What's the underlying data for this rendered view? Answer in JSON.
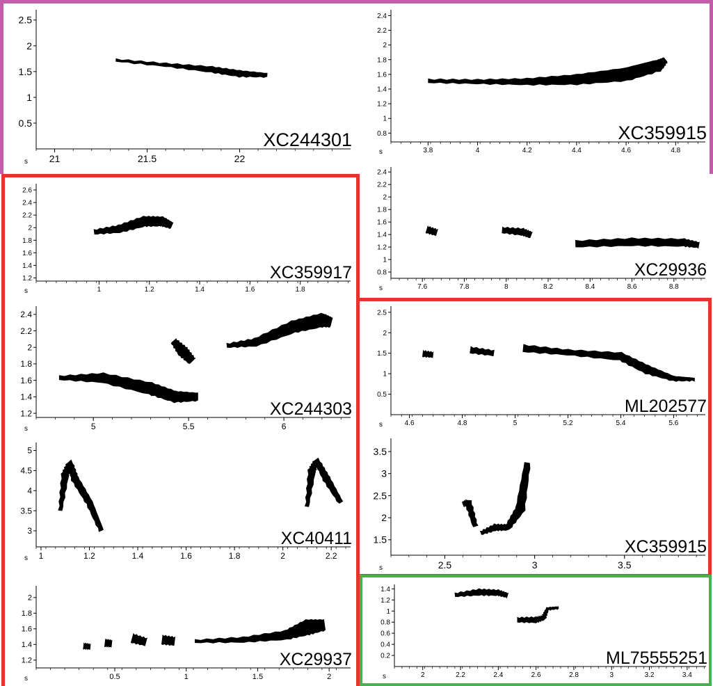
{
  "colors": {
    "purple_group": "#c25ea9",
    "red_group": "#e8352b",
    "green_group": "#4bae4f",
    "trace": "#000000"
  },
  "axis_unit": "s",
  "panels": [
    {
      "id": "XC244301",
      "label": "XC244301",
      "frame": "purple",
      "y_ticks": [
        "0.5",
        "1",
        "1.5",
        "2",
        "2.5"
      ],
      "x_ticks": [
        "21",
        "21.5",
        "22"
      ],
      "y_range": [
        0,
        2.7
      ],
      "x_range": [
        20.9,
        22.6
      ],
      "traces": [
        {
          "points": [
            [
              21.33,
              1.72
            ],
            [
              21.6,
              1.63
            ],
            [
              21.85,
              1.54
            ],
            [
              22.0,
              1.46
            ],
            [
              22.15,
              1.43
            ]
          ],
          "width": [
            0.02,
            0.04,
            0.09,
            0.1,
            0.05
          ]
        }
      ]
    },
    {
      "id": "XC359915-a",
      "label": "XC359915",
      "frame": "purple",
      "y_ticks": [
        "0.8",
        "1",
        "1.2",
        "1.4",
        "1.6",
        "1.8",
        "2",
        "2.2",
        "2.4"
      ],
      "x_ticks": [
        "3.8",
        "4",
        "4.2",
        "4.4",
        "4.6",
        "4.8"
      ],
      "y_range": [
        0.68,
        2.48
      ],
      "x_range": [
        3.65,
        4.92
      ],
      "traces": [
        {
          "points": [
            [
              3.8,
              1.51
            ],
            [
              4.0,
              1.5
            ],
            [
              4.2,
              1.5
            ],
            [
              4.4,
              1.53
            ],
            [
              4.6,
              1.6
            ],
            [
              4.73,
              1.72
            ],
            [
              4.76,
              1.8
            ]
          ],
          "width": [
            0.03,
            0.04,
            0.07,
            0.12,
            0.16,
            0.14,
            0.06
          ]
        }
      ]
    },
    {
      "id": "XC359917",
      "label": "XC359917",
      "frame": "red",
      "y_ticks": [
        "1.2",
        "1.4",
        "1.6",
        "1.8",
        "2",
        "2.2",
        "2.4",
        "2.6"
      ],
      "x_ticks": [
        "1",
        "1.2",
        "1.4",
        "1.6",
        "1.8"
      ],
      "y_range": [
        1.15,
        2.7
      ],
      "x_range": [
        0.75,
        2.0
      ],
      "traces": [
        {
          "points": [
            [
              0.98,
              1.93
            ],
            [
              1.08,
              1.98
            ],
            [
              1.18,
              2.1
            ],
            [
              1.25,
              2.1
            ],
            [
              1.29,
              2.03
            ]
          ],
          "width": [
            0.05,
            0.1,
            0.14,
            0.13,
            0.08
          ]
        }
      ]
    },
    {
      "id": "XC29936",
      "label": "XC29936",
      "frame": "purple",
      "y_ticks": [
        "0.8",
        "1",
        "1.2",
        "1.4",
        "1.6",
        "1.8",
        "2",
        "2.2",
        "2.4"
      ],
      "x_ticks": [
        "7.6",
        "7.8",
        "8",
        "8.2",
        "8.4",
        "8.6",
        "8.8"
      ],
      "y_range": [
        0.7,
        2.48
      ],
      "x_range": [
        7.45,
        8.95
      ],
      "traces": [
        {
          "points": [
            [
              7.62,
              1.48
            ],
            [
              7.67,
              1.43
            ]
          ],
          "width": [
            0.09,
            0.08
          ]
        },
        {
          "points": [
            [
              7.98,
              1.47
            ],
            [
              8.08,
              1.44
            ],
            [
              8.12,
              1.39
            ]
          ],
          "width": [
            0.07,
            0.09,
            0.08
          ]
        },
        {
          "points": [
            [
              8.33,
              1.25
            ],
            [
              8.6,
              1.28
            ],
            [
              8.85,
              1.27
            ],
            [
              8.92,
              1.23
            ]
          ],
          "width": [
            0.08,
            0.1,
            0.1,
            0.07
          ]
        }
      ]
    },
    {
      "id": "XC244303",
      "label": "XC244303",
      "frame": "red",
      "y_ticks": [
        "1.2",
        "1.4",
        "1.6",
        "1.8",
        "2",
        "2.2",
        "2.4"
      ],
      "x_ticks": [
        "5",
        "5.5",
        "6"
      ],
      "y_range": [
        1.15,
        2.5
      ],
      "x_range": [
        4.7,
        6.35
      ],
      "traces": [
        {
          "points": [
            [
              4.82,
              1.63
            ],
            [
              5.05,
              1.63
            ],
            [
              5.3,
              1.5
            ],
            [
              5.43,
              1.4
            ],
            [
              5.55,
              1.4
            ]
          ],
          "width": [
            0.03,
            0.1,
            0.13,
            0.12,
            0.08
          ]
        },
        {
          "points": [
            [
              5.42,
              2.08
            ],
            [
              5.47,
              1.95
            ],
            [
              5.52,
              1.83
            ]
          ],
          "width": [
            0.06,
            0.12,
            0.08
          ]
        },
        {
          "points": [
            [
              5.7,
              2.02
            ],
            [
              5.85,
              2.06
            ],
            [
              6.05,
              2.25
            ],
            [
              6.2,
              2.33
            ],
            [
              6.25,
              2.3
            ]
          ],
          "width": [
            0.03,
            0.08,
            0.13,
            0.15,
            0.1
          ]
        }
      ]
    },
    {
      "id": "ML202577",
      "label": "ML202577",
      "frame": "red",
      "y_ticks": [
        "0.5",
        "1",
        "1.5",
        "2",
        "2.5"
      ],
      "x_ticks": [
        "4.6",
        "4.8",
        "5",
        "5.2",
        "5.4",
        "5.6"
      ],
      "y_range": [
        0,
        2.65
      ],
      "x_range": [
        4.53,
        5.72
      ],
      "traces": [
        {
          "points": [
            [
              4.65,
              1.49
            ],
            [
              4.69,
              1.46
            ]
          ],
          "width": [
            0.12,
            0.1
          ]
        },
        {
          "points": [
            [
              4.83,
              1.58
            ],
            [
              4.92,
              1.5
            ]
          ],
          "width": [
            0.12,
            0.1
          ]
        },
        {
          "points": [
            [
              5.03,
              1.62
            ],
            [
              5.2,
              1.52
            ],
            [
              5.4,
              1.42
            ],
            [
              5.5,
              1.1
            ],
            [
              5.6,
              0.88
            ],
            [
              5.68,
              0.86
            ]
          ],
          "width": [
            0.14,
            0.1,
            0.16,
            0.18,
            0.09,
            0.04
          ]
        }
      ]
    },
    {
      "id": "XC40411",
      "label": "XC40411",
      "frame": "red",
      "y_ticks": [
        "3",
        "3.5",
        "4",
        "4.5",
        "5"
      ],
      "x_ticks": [
        "1",
        "1.2",
        "1.4",
        "1.6",
        "1.8",
        "2",
        "2.2"
      ],
      "y_range": [
        2.6,
        5.2
      ],
      "x_range": [
        0.98,
        2.28
      ],
      "traces": [
        {
          "points": [
            [
              1.08,
              3.5
            ],
            [
              1.1,
              4.4
            ],
            [
              1.12,
              4.7
            ],
            [
              1.14,
              4.3
            ],
            [
              1.2,
              3.7
            ],
            [
              1.25,
              3.0
            ]
          ],
          "width": [
            0.05,
            0.15,
            0.1,
            0.15,
            0.13,
            0.08
          ]
        },
        {
          "points": [
            [
              2.1,
              3.6
            ],
            [
              2.12,
              4.5
            ],
            [
              2.14,
              4.75
            ],
            [
              2.18,
              4.3
            ],
            [
              2.24,
              3.7
            ]
          ],
          "width": [
            0.05,
            0.15,
            0.1,
            0.15,
            0.08
          ]
        }
      ]
    },
    {
      "id": "XC359915-b",
      "label": "XC359915",
      "frame": "red",
      "y_ticks": [
        "1.5",
        "2",
        "2.5",
        "3",
        "3.5"
      ],
      "x_ticks": [
        "2.5",
        "3",
        "3.5"
      ],
      "y_range": [
        1.15,
        3.8
      ],
      "x_range": [
        2.2,
        3.95
      ],
      "traces": [
        {
          "points": [
            [
              2.6,
              2.3
            ],
            [
              2.63,
              2.35
            ],
            [
              2.67,
              1.8
            ]
          ],
          "width": [
            0.08,
            0.12,
            0.08
          ]
        },
        {
          "points": [
            [
              2.7,
              1.65
            ],
            [
              2.78,
              1.78
            ],
            [
              2.85,
              1.78
            ],
            [
              2.92,
              2.2
            ],
            [
              2.96,
              3.25
            ]
          ],
          "width": [
            0.05,
            0.12,
            0.1,
            0.18,
            0.1
          ]
        }
      ]
    },
    {
      "id": "XC29937",
      "label": "XC29937",
      "frame": "red",
      "y_ticks": [
        "1.2",
        "1.4",
        "1.6",
        "1.8",
        "2"
      ],
      "x_ticks": [
        "0.5",
        "1",
        "1.5",
        "2"
      ],
      "y_range": [
        1.1,
        2.15
      ],
      "x_range": [
        -0.05,
        2.15
      ],
      "traces": [
        {
          "points": [
            [
              0.28,
              1.38
            ],
            [
              0.33,
              1.37
            ]
          ],
          "width": [
            0.06,
            0.05
          ]
        },
        {
          "points": [
            [
              0.43,
              1.42
            ],
            [
              0.48,
              1.41
            ]
          ],
          "width": [
            0.08,
            0.07
          ]
        },
        {
          "points": [
            [
              0.62,
              1.48
            ],
            [
              0.72,
              1.43
            ]
          ],
          "width": [
            0.1,
            0.08
          ]
        },
        {
          "points": [
            [
              0.83,
              1.46
            ],
            [
              0.92,
              1.44
            ]
          ],
          "width": [
            0.1,
            0.09
          ]
        },
        {
          "points": [
            [
              1.06,
              1.44
            ],
            [
              1.4,
              1.46
            ],
            [
              1.7,
              1.52
            ],
            [
              1.85,
              1.62
            ],
            [
              1.97,
              1.65
            ]
          ],
          "width": [
            0.02,
            0.05,
            0.1,
            0.18,
            0.12
          ]
        }
      ]
    },
    {
      "id": "ML75555251",
      "label": "ML75555251",
      "frame": "green",
      "y_ticks": [
        "0.2",
        "0.4",
        "0.6",
        "0.8",
        "1",
        "1.2",
        "1.4"
      ],
      "x_ticks": [
        "2",
        "2.2",
        "2.4",
        "2.6",
        "2.8",
        "3",
        "3.2",
        "3.4"
      ],
      "y_range": [
        0,
        1.48
      ],
      "x_range": [
        1.85,
        3.5
      ],
      "traces": [
        {
          "points": [
            [
              2.17,
              1.29
            ],
            [
              2.3,
              1.34
            ],
            [
              2.4,
              1.33
            ],
            [
              2.45,
              1.28
            ]
          ],
          "width": [
            0.04,
            0.09,
            0.08,
            0.06
          ]
        },
        {
          "points": [
            [
              2.5,
              0.84
            ],
            [
              2.6,
              0.84
            ],
            [
              2.64,
              0.88
            ],
            [
              2.66,
              1.04
            ],
            [
              2.72,
              1.06
            ]
          ],
          "width": [
            0.06,
            0.08,
            0.06,
            0.03,
            0.02
          ]
        }
      ]
    }
  ]
}
